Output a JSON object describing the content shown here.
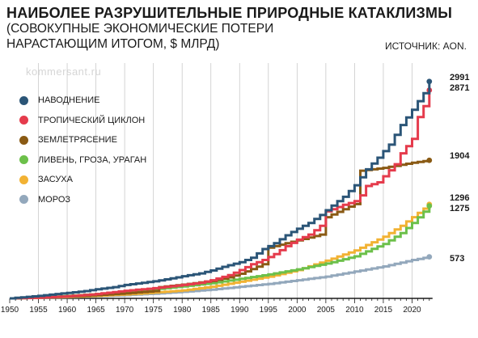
{
  "header": {
    "title": "НАИБОЛЕЕ РАЗРУШИТЕЛЬНЫЕ ПРИРОДНЫЕ КАТАКЛИЗМЫ",
    "subtitle_line1": "(СОВОКУПНЫЕ ЭКОНОМИЧЕСКИЕ ПОТЕРИ",
    "subtitle_line2": "НАРАСТАЮЩИМ ИТОГОМ, $ МЛРД)",
    "source": "ИСТОЧНИК: AON.",
    "watermark": "kommersant.ru"
  },
  "chart_data": {
    "type": "line",
    "xlabel": "",
    "ylabel": "",
    "xlim": [
      1950,
      2025
    ],
    "ylim": [
      0,
      3200
    ],
    "x_ticks": [
      1950,
      1955,
      1960,
      1965,
      1970,
      1975,
      1980,
      1985,
      1990,
      1995,
      2000,
      2005,
      2010,
      2015,
      2020
    ],
    "grid": "vertical",
    "legend_position": "left",
    "series": [
      {
        "name": "НАВОДНЕНИЕ",
        "color": "#2b5577",
        "end_label": "2991",
        "points": [
          [
            1950,
            0
          ],
          [
            1952,
            15
          ],
          [
            1955,
            35
          ],
          [
            1958,
            60
          ],
          [
            1960,
            75
          ],
          [
            1963,
            100
          ],
          [
            1965,
            125
          ],
          [
            1968,
            155
          ],
          [
            1970,
            185
          ],
          [
            1972,
            205
          ],
          [
            1975,
            235
          ],
          [
            1978,
            275
          ],
          [
            1980,
            305
          ],
          [
            1983,
            345
          ],
          [
            1985,
            385
          ],
          [
            1987,
            435
          ],
          [
            1990,
            500
          ],
          [
            1992,
            560
          ],
          [
            1994,
            680
          ],
          [
            1996,
            760
          ],
          [
            1998,
            870
          ],
          [
            2000,
            960
          ],
          [
            2002,
            1040
          ],
          [
            2004,
            1150
          ],
          [
            2006,
            1280
          ],
          [
            2008,
            1400
          ],
          [
            2010,
            1560
          ],
          [
            2012,
            1780
          ],
          [
            2014,
            1940
          ],
          [
            2016,
            2120
          ],
          [
            2018,
            2390
          ],
          [
            2020,
            2600
          ],
          [
            2021,
            2720
          ],
          [
            2022,
            2830
          ],
          [
            2023,
            2991
          ]
        ]
      },
      {
        "name": "ТРОПИЧЕСКИЙ ЦИКЛОН",
        "color": "#e53b4c",
        "end_label": "2871",
        "points": [
          [
            1950,
            0
          ],
          [
            1955,
            10
          ],
          [
            1960,
            30
          ],
          [
            1965,
            60
          ],
          [
            1970,
            105
          ],
          [
            1975,
            140
          ],
          [
            1980,
            185
          ],
          [
            1983,
            215
          ],
          [
            1985,
            250
          ],
          [
            1988,
            320
          ],
          [
            1990,
            390
          ],
          [
            1992,
            470
          ],
          [
            1994,
            530
          ],
          [
            1996,
            610
          ],
          [
            1998,
            720
          ],
          [
            2000,
            810
          ],
          [
            2002,
            880
          ],
          [
            2004,
            1000
          ],
          [
            2005,
            1200
          ],
          [
            2008,
            1290
          ],
          [
            2010,
            1340
          ],
          [
            2011,
            1420
          ],
          [
            2012,
            1550
          ],
          [
            2014,
            1600
          ],
          [
            2017,
            1850
          ],
          [
            2018,
            2000
          ],
          [
            2020,
            2200
          ],
          [
            2021,
            2500
          ],
          [
            2022,
            2650
          ],
          [
            2023,
            2871
          ]
        ]
      },
      {
        "name": "ЗЕМЛЕТРЯСЕНИЕ",
        "color": "#8a5a14",
        "end_label": "1904",
        "points": [
          [
            1950,
            0
          ],
          [
            1955,
            10
          ],
          [
            1960,
            25
          ],
          [
            1965,
            45
          ],
          [
            1970,
            70
          ],
          [
            1975,
            100
          ],
          [
            1976,
            155
          ],
          [
            1980,
            190
          ],
          [
            1985,
            240
          ],
          [
            1988,
            290
          ],
          [
            1990,
            340
          ],
          [
            1994,
            470
          ],
          [
            1995,
            700
          ],
          [
            1998,
            760
          ],
          [
            2000,
            800
          ],
          [
            2004,
            880
          ],
          [
            2005,
            1120
          ],
          [
            2008,
            1230
          ],
          [
            2010,
            1300
          ],
          [
            2011,
            1760
          ],
          [
            2015,
            1800
          ],
          [
            2020,
            1870
          ],
          [
            2023,
            1904
          ]
        ]
      },
      {
        "name": "ЛИВЕНЬ, ГРОЗА, УРАГАН",
        "color": "#6cc04a",
        "end_label": "1275",
        "points": [
          [
            1950,
            0
          ],
          [
            1955,
            15
          ],
          [
            1960,
            35
          ],
          [
            1965,
            60
          ],
          [
            1970,
            90
          ],
          [
            1975,
            125
          ],
          [
            1980,
            165
          ],
          [
            1985,
            210
          ],
          [
            1990,
            270
          ],
          [
            1995,
            330
          ],
          [
            2000,
            400
          ],
          [
            2005,
            480
          ],
          [
            2010,
            580
          ],
          [
            2015,
            750
          ],
          [
            2018,
            900
          ],
          [
            2020,
            1040
          ],
          [
            2023,
            1275
          ]
        ]
      },
      {
        "name": "ЗАСУХА",
        "color": "#f2b233",
        "end_label": "1296",
        "points": [
          [
            1950,
            0
          ],
          [
            1955,
            10
          ],
          [
            1960,
            20
          ],
          [
            1965,
            35
          ],
          [
            1970,
            55
          ],
          [
            1975,
            80
          ],
          [
            1980,
            110
          ],
          [
            1985,
            160
          ],
          [
            1990,
            230
          ],
          [
            1995,
            300
          ],
          [
            2000,
            390
          ],
          [
            2005,
            520
          ],
          [
            2010,
            660
          ],
          [
            2015,
            850
          ],
          [
            2018,
            1000
          ],
          [
            2020,
            1120
          ],
          [
            2023,
            1296
          ]
        ]
      },
      {
        "name": "МОРОЗ",
        "color": "#93a8bc",
        "end_label": "573",
        "points": [
          [
            1950,
            0
          ],
          [
            1955,
            8
          ],
          [
            1960,
            18
          ],
          [
            1965,
            30
          ],
          [
            1970,
            45
          ],
          [
            1975,
            65
          ],
          [
            1980,
            90
          ],
          [
            1985,
            120
          ],
          [
            1990,
            160
          ],
          [
            1995,
            200
          ],
          [
            2000,
            250
          ],
          [
            2005,
            300
          ],
          [
            2010,
            370
          ],
          [
            2015,
            440
          ],
          [
            2020,
            530
          ],
          [
            2023,
            573
          ]
        ]
      }
    ]
  }
}
